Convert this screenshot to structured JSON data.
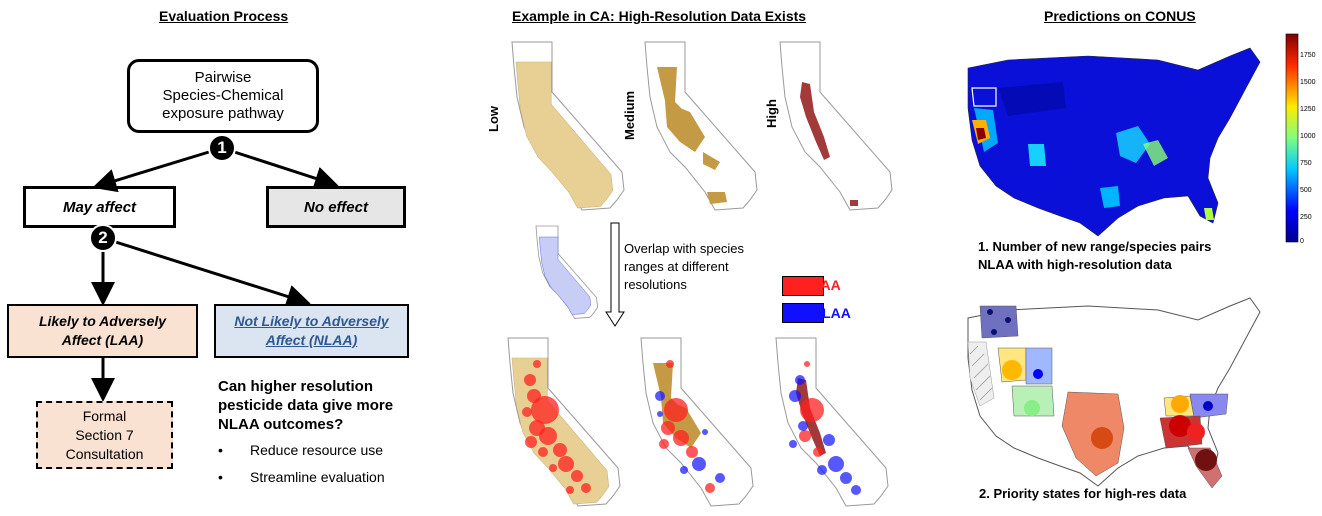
{
  "panel_left": {
    "title": "Evaluation Process",
    "start_box": [
      "Pairwise",
      "Species-Chemical",
      "exposure pathway"
    ],
    "step1": "1",
    "step2": "2",
    "may_affect": "May affect",
    "no_effect": "No effect",
    "laa": [
      "Likely to Adversely",
      "Affect (LAA)"
    ],
    "nlaa": [
      "Not Likely to Adversely",
      "Affect (NLAA)"
    ],
    "consult": [
      "Formal",
      "Section 7",
      "Consultation"
    ],
    "question": [
      "Can higher resolution",
      "pesticide data give more",
      "NLAA outcomes?"
    ],
    "bullets": [
      "Reduce resource use",
      "Streamline evaluation"
    ],
    "bullet_char": "•"
  },
  "panel_mid": {
    "title": "Example in CA: High-Resolution Data Exists",
    "resolutions": [
      "Low",
      "Medium",
      "High"
    ],
    "overlap_text": [
      "Overlap with species",
      "ranges at different",
      "resolutions"
    ],
    "legend": [
      {
        "label": "LAA",
        "color": "#ff2020"
      },
      {
        "label": "NLAA",
        "color": "#1010ff"
      }
    ],
    "fill_colors": {
      "low": "#e8cf94",
      "medium": "#c49a44",
      "high": "#a33a3a"
    }
  },
  "panel_right": {
    "title": "Predictions on CONUS",
    "colorbar_ticks": [
      "1750",
      "1500",
      "1250",
      "1000",
      "750",
      "500",
      "250",
      "0"
    ],
    "caption1": [
      "1. Number of new range/species pairs",
      "NLAA with high-resolution data"
    ],
    "caption2": "2. Priority states for high-res data"
  }
}
